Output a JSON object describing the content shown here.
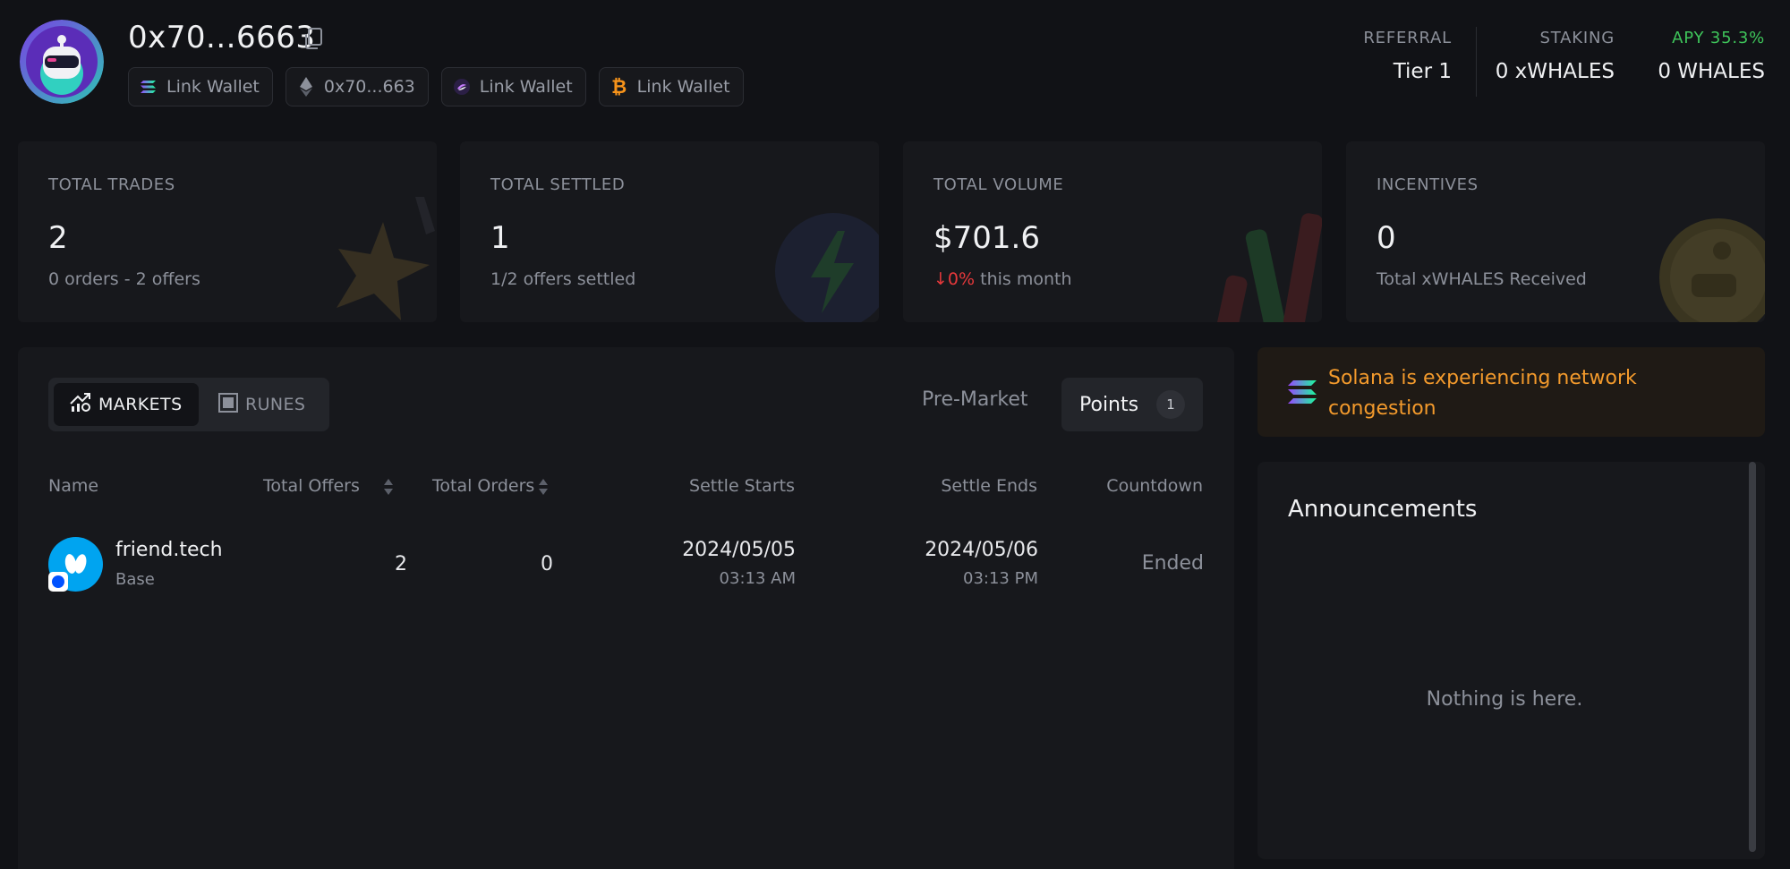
{
  "header": {
    "address": "0x70...6663",
    "wallets": [
      {
        "icon": "solana-icon",
        "label": "Link Wallet"
      },
      {
        "icon": "ethereum-icon",
        "label": "0x70...663"
      },
      {
        "icon": "sui-icon",
        "label": "Link Wallet"
      },
      {
        "icon": "bitcoin-icon",
        "label": "Link Wallet"
      }
    ],
    "referral": {
      "label": "REFERRAL",
      "value": "Tier 1"
    },
    "staking": {
      "label": "STAKING",
      "value": "0 xWHALES"
    },
    "apy": {
      "label": "APY 35.3%",
      "value": "0 WHALES"
    }
  },
  "cards": [
    {
      "label": "TOTAL TRADES",
      "value": "2",
      "sub": "0 orders - 2 offers"
    },
    {
      "label": "TOTAL SETTLED",
      "value": "1",
      "sub": "1/2 offers settled"
    },
    {
      "label": "TOTAL VOLUME",
      "value": "$701.6",
      "change": "0%",
      "sub": "this month"
    },
    {
      "label": "INCENTIVES",
      "value": "0",
      "sub": "Total xWHALES Received"
    }
  ],
  "markets": {
    "segments": {
      "markets": "MARKETS",
      "runes": "RUNES"
    },
    "tabs": {
      "premarket": "Pre-Market",
      "points": "Points",
      "points_count": "1"
    },
    "columns": {
      "name": "Name",
      "total_offers": "Total Offers",
      "total_orders": "Total Orders",
      "settle_starts": "Settle Starts",
      "settle_ends": "Settle Ends",
      "countdown": "Countdown"
    },
    "rows": [
      {
        "name": "friend.tech",
        "chain": "Base",
        "total_offers": "2",
        "total_orders": "0",
        "settle_starts_date": "2024/05/05",
        "settle_starts_time": "03:13 AM",
        "settle_ends_date": "2024/05/06",
        "settle_ends_time": "03:13 PM",
        "countdown": "Ended"
      }
    ]
  },
  "alert": {
    "text": "Solana is experiencing network congestion"
  },
  "announcements": {
    "title": "Announcements",
    "empty": "Nothing is here."
  },
  "colors": {
    "background": "#111216",
    "card": "#17181c",
    "alert_text": "#f39a2c",
    "apy_green": "#3ec45a",
    "down_red": "#e5383b"
  }
}
